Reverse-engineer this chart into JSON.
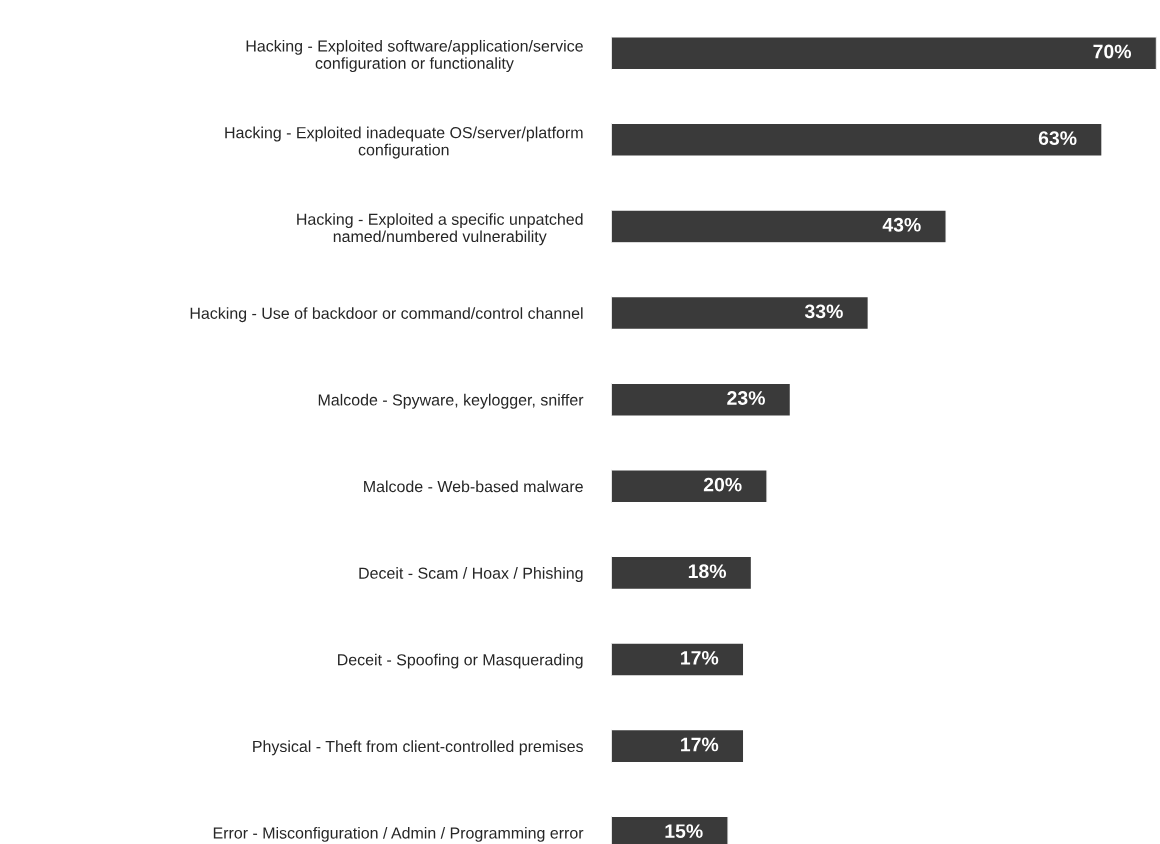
{
  "chart_data": {
    "type": "bar",
    "orientation": "horizontal",
    "categories": [
      "Hacking - Exploited software/application/service\nconfiguration or functionality",
      "Hacking - Exploited inadequate OS/server/platform\nconfiguration",
      "Hacking - Exploited a specific unpatched\nnamed/numbered vulnerability",
      "Hacking - Use of backdoor or command/control channel",
      "Malcode - Spyware, keylogger, sniffer",
      "Malcode - Web-based malware",
      "Deceit - Scam / Hoax / Phishing",
      "Deceit - Spoofing or Masquerading",
      "Physical - Theft from client-controlled premises",
      "Error - Misconfiguration / Admin / Programming error"
    ],
    "values": [
      70,
      63,
      43,
      33,
      23,
      20,
      18,
      17,
      17,
      15
    ],
    "value_labels": [
      "70%",
      "63%",
      "43%",
      "33%",
      "23%",
      "20%",
      "18%",
      "17%",
      "17%",
      "15%"
    ],
    "color": "#3a3a3a",
    "xlim": [
      0,
      70
    ],
    "tick_labels": "y",
    "grid": false,
    "legend": false
  }
}
